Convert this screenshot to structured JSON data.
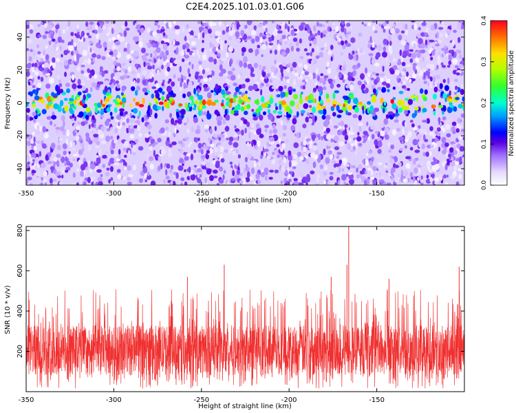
{
  "title": "C2E4.2025.101.03.01.G06",
  "chart_data": [
    {
      "type": "heatmap",
      "xlabel": "Height of straight line (km)",
      "ylabel": "Frequency (Hz)",
      "xlim": [
        -350,
        -100
      ],
      "ylim": [
        -50,
        50
      ],
      "xticks": [
        -350,
        -300,
        -250,
        -200,
        -150
      ],
      "yticks": [
        -40,
        -20,
        0,
        20,
        40
      ],
      "grid": false,
      "colorbar": {
        "label": "Normalized spectral amplitude",
        "range": [
          0,
          0.4
        ],
        "ticks": [
          "0.0",
          "0.1",
          "0.2",
          "0.3",
          "0.4"
        ]
      },
      "description_band": {
        "center_hz": 0,
        "half_width_hz": 8,
        "peak_amplitude": 0.3,
        "background_amplitude": 0.05
      }
    },
    {
      "type": "line",
      "xlabel": "Height of straight line (km)",
      "ylabel": "SNR (10 * v/v)",
      "xlim": [
        -350,
        -100
      ],
      "ylim": [
        0,
        820
      ],
      "xticks": [
        -350,
        -300,
        -250,
        -200,
        -150
      ],
      "yticks": [
        200,
        400,
        600,
        800
      ],
      "grid": false,
      "series_color": "#f03030",
      "typical_range": [
        80,
        330
      ],
      "notable_peaks": [
        {
          "x": -166,
          "y": 820
        },
        {
          "x": -167,
          "y": 630
        },
        {
          "x": -237,
          "y": 630
        },
        {
          "x": -103,
          "y": 620
        },
        {
          "x": -176,
          "y": 570
        },
        {
          "x": -143,
          "y": 560
        },
        {
          "x": -258,
          "y": 570
        }
      ]
    }
  ]
}
